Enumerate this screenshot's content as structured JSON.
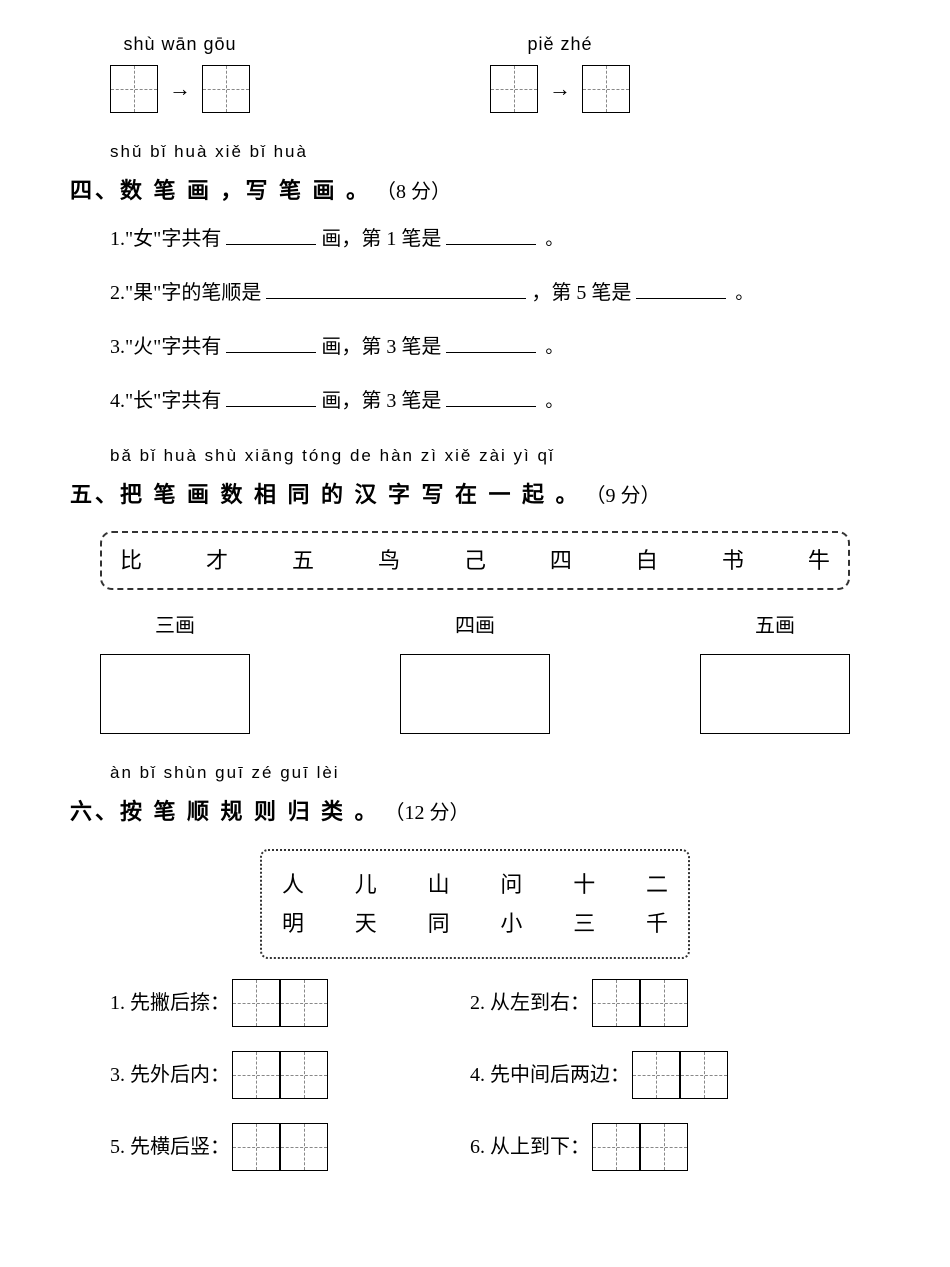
{
  "top": {
    "item1": {
      "pinyin": "shù wān gōu"
    },
    "item2": {
      "pinyin": "piě zhé"
    },
    "arrow": "→"
  },
  "section4": {
    "pinyin": "shǔ bǐ huà  xiě bǐ huà",
    "title": "四、数 笔 画 ，写 笔 画 。",
    "points": "（8 分）",
    "questions": {
      "q1a": "1.\"女\"字共有",
      "q1b": "画，第 1 笔是",
      "q2a": "2.\"果\"字的笔顺是",
      "q2b": "，第 5 笔是",
      "q3a": "3.\"火\"字共有",
      "q3b": "画，第 3 笔是",
      "q4a": "4.\"长\"字共有",
      "q4b": "画，第 3 笔是"
    },
    "end": "。"
  },
  "section5": {
    "pinyin": "bǎ  bǐ huà shù xiāng tóng de hàn  zì  xiě zài yì  qǐ",
    "title": "五、把 笔 画 数  相  同 的 汉 字 写 在 一 起 。",
    "points": "（9 分）",
    "chars": [
      "比",
      "才",
      "五",
      "鸟",
      "己",
      "四",
      "白",
      "书",
      "牛"
    ],
    "groups": {
      "g1": "三画",
      "g2": "四画",
      "g3": "五画"
    }
  },
  "section6": {
    "pinyin": "àn  bǐ shùn guī zé guī lèi",
    "title": "六、按 笔 顺 规 则 归 类 。",
    "points": "（12 分）",
    "chars_row1": [
      "人",
      "儿",
      "山",
      "问",
      "十",
      "二"
    ],
    "chars_row2": [
      "明",
      "天",
      "同",
      "小",
      "三",
      "千"
    ],
    "rules": {
      "r1": "1. 先撇后捺：",
      "r2": "2. 从左到右：",
      "r3": "3. 先外后内：",
      "r4": "4. 先中间后两边：",
      "r5": "5. 先横后竖：",
      "r6": "6. 从上到下："
    }
  }
}
